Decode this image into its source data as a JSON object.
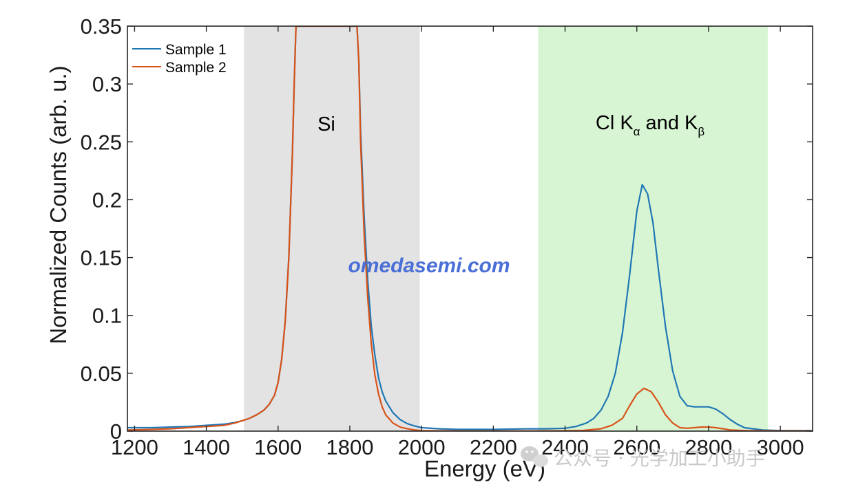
{
  "colors": {
    "series1": "#1f77b4",
    "series2": "#d95319",
    "si_region": "#e3e3e3",
    "cl_region": "#d7f5d3",
    "watermark": "#4a6fd6",
    "wechat": "#c9c9c9"
  },
  "chart_data": {
    "type": "line",
    "xlabel": "Energy (eV)",
    "ylabel": "Normalized Counts (arb. u.)",
    "xlim": [
      1180,
      3090
    ],
    "ylim": [
      0,
      0.35
    ],
    "xticks": [
      1200,
      1400,
      1600,
      1800,
      2000,
      2200,
      2400,
      2600,
      2800,
      3000
    ],
    "xtick_labels": [
      "1200",
      "1400",
      "1600",
      "1800",
      "2000",
      "2200",
      "2400",
      "2600",
      "2800",
      "3000"
    ],
    "yticks": [
      0,
      0.05,
      0.1,
      0.15,
      0.2,
      0.25,
      0.3,
      0.35
    ],
    "ytick_labels": [
      "0",
      "0.05",
      "0.1",
      "0.15",
      "0.2",
      "0.25",
      "0.3",
      "0.35"
    ],
    "grid": false,
    "legend_position": "top-left",
    "regions": [
      {
        "label": "Si",
        "x_range": [
          1505,
          1995
        ]
      },
      {
        "label_main": "Cl K",
        "label_sub1": "α",
        "label_mid": " and K",
        "label_sub2": "β",
        "x_range": [
          2325,
          2965
        ]
      }
    ],
    "series": [
      {
        "name": "Sample 1",
        "x": [
          1180,
          1250,
          1300,
          1350,
          1400,
          1450,
          1480,
          1500,
          1520,
          1540,
          1560,
          1575,
          1590,
          1600,
          1610,
          1620,
          1630,
          1640,
          1645,
          1650,
          1655,
          1820,
          1825,
          1830,
          1840,
          1850,
          1860,
          1870,
          1880,
          1890,
          1900,
          1920,
          1940,
          1960,
          1980,
          2000,
          2050,
          2100,
          2200,
          2300,
          2350,
          2400,
          2430,
          2460,
          2480,
          2500,
          2520,
          2540,
          2560,
          2580,
          2600,
          2615,
          2630,
          2645,
          2660,
          2680,
          2700,
          2720,
          2740,
          2760,
          2780,
          2800,
          2820,
          2840,
          2860,
          2880,
          2900,
          2950,
          3000,
          3090
        ],
        "y": [
          0.003,
          0.003,
          0.0035,
          0.004,
          0.005,
          0.006,
          0.0075,
          0.009,
          0.011,
          0.014,
          0.018,
          0.023,
          0.031,
          0.042,
          0.062,
          0.095,
          0.15,
          0.24,
          0.3,
          0.35,
          0.35,
          0.35,
          0.32,
          0.26,
          0.185,
          0.13,
          0.09,
          0.065,
          0.046,
          0.034,
          0.026,
          0.016,
          0.01,
          0.0065,
          0.0045,
          0.003,
          0.002,
          0.0015,
          0.0015,
          0.002,
          0.002,
          0.0025,
          0.004,
          0.007,
          0.011,
          0.018,
          0.03,
          0.05,
          0.085,
          0.135,
          0.19,
          0.213,
          0.205,
          0.18,
          0.14,
          0.09,
          0.052,
          0.03,
          0.022,
          0.021,
          0.021,
          0.021,
          0.019,
          0.015,
          0.01,
          0.006,
          0.003,
          0.001,
          0.0005,
          0.0005
        ]
      },
      {
        "name": "Sample 2",
        "x": [
          1180,
          1250,
          1300,
          1350,
          1400,
          1450,
          1480,
          1500,
          1520,
          1540,
          1560,
          1575,
          1590,
          1600,
          1610,
          1620,
          1630,
          1640,
          1645,
          1650,
          1655,
          1820,
          1825,
          1830,
          1840,
          1850,
          1860,
          1870,
          1880,
          1890,
          1900,
          1920,
          1940,
          1960,
          1980,
          2000,
          2050,
          2100,
          2200,
          2300,
          2400,
          2450,
          2500,
          2530,
          2560,
          2580,
          2600,
          2620,
          2640,
          2660,
          2680,
          2700,
          2720,
          2740,
          2760,
          2780,
          2800,
          2820,
          2840,
          2860,
          2900,
          2950,
          3000,
          3090
        ],
        "y": [
          0.001,
          0.0015,
          0.002,
          0.003,
          0.004,
          0.005,
          0.007,
          0.009,
          0.011,
          0.014,
          0.018,
          0.023,
          0.031,
          0.042,
          0.062,
          0.095,
          0.15,
          0.24,
          0.3,
          0.35,
          0.35,
          0.35,
          0.32,
          0.25,
          0.17,
          0.115,
          0.075,
          0.048,
          0.032,
          0.021,
          0.014,
          0.007,
          0.0035,
          0.002,
          0.001,
          0.0005,
          0.0003,
          0.0002,
          0.0002,
          0.0002,
          0.0003,
          0.0006,
          0.002,
          0.005,
          0.011,
          0.022,
          0.032,
          0.037,
          0.034,
          0.025,
          0.014,
          0.007,
          0.003,
          0.0025,
          0.003,
          0.0035,
          0.0035,
          0.003,
          0.002,
          0.001,
          0.0005,
          0.0003,
          0.0002,
          0.0002
        ]
      }
    ]
  },
  "watermark_text": "omedasemi.com",
  "wechat_text": "公众号 · 光学加工小助手"
}
